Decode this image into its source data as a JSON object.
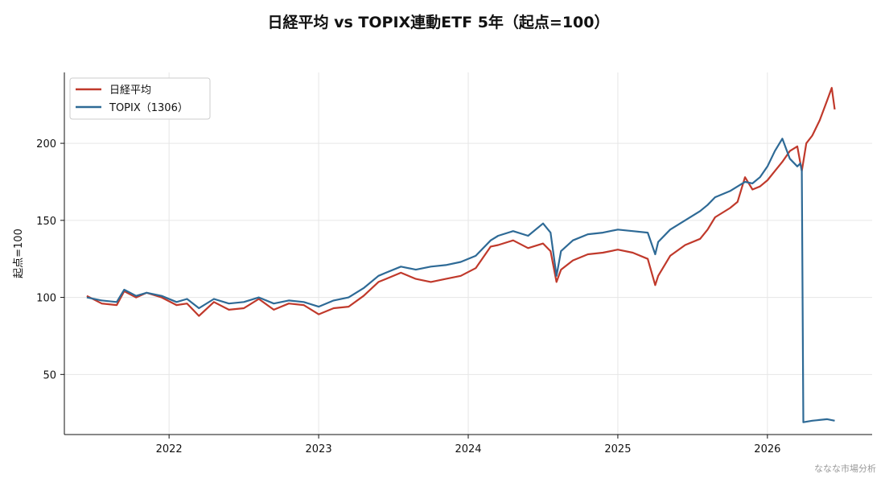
{
  "chart_data": {
    "type": "line",
    "title": "日経平均 vs TOPIX連動ETF 5年（起点=100）",
    "xlabel": "",
    "ylabel": "起点=100",
    "xlim": [
      2021.3,
      2026.7
    ],
    "ylim": [
      11,
      246
    ],
    "x_ticks": [
      2022,
      2023,
      2024,
      2025,
      2026
    ],
    "x_tick_labels": [
      "2022",
      "2023",
      "2024",
      "2025",
      "2026"
    ],
    "y_ticks": [
      50,
      100,
      150,
      200
    ],
    "y_tick_labels": [
      "50",
      "100",
      "150",
      "200"
    ],
    "grid": true,
    "legend_position": "top-left",
    "series": [
      {
        "name": "日経平均",
        "color": "#c0392b",
        "x": [
          2021.45,
          2021.55,
          2021.65,
          2021.7,
          2021.78,
          2021.85,
          2021.95,
          2022.05,
          2022.12,
          2022.2,
          2022.3,
          2022.4,
          2022.5,
          2022.6,
          2022.7,
          2022.8,
          2022.9,
          2023.0,
          2023.1,
          2023.2,
          2023.3,
          2023.4,
          2023.45,
          2023.55,
          2023.65,
          2023.75,
          2023.85,
          2023.95,
          2024.05,
          2024.15,
          2024.2,
          2024.3,
          2024.4,
          2024.5,
          2024.55,
          2024.59,
          2024.62,
          2024.7,
          2024.8,
          2024.9,
          2025.0,
          2025.1,
          2025.2,
          2025.25,
          2025.27,
          2025.35,
          2025.45,
          2025.55,
          2025.6,
          2025.65,
          2025.75,
          2025.8,
          2025.85,
          2025.9,
          2025.95,
          2026.0,
          2026.05,
          2026.1,
          2026.15,
          2026.2,
          2026.23,
          2026.26,
          2026.3,
          2026.35,
          2026.4,
          2026.43,
          2026.45
        ],
        "values": [
          101,
          96,
          95,
          104,
          100,
          103,
          100,
          95,
          96,
          88,
          97,
          92,
          93,
          99,
          92,
          96,
          95,
          89,
          93,
          94,
          101,
          110,
          112,
          116,
          112,
          110,
          112,
          114,
          119,
          133,
          134,
          137,
          132,
          135,
          130,
          110,
          118,
          124,
          128,
          129,
          131,
          129,
          125,
          108,
          114,
          127,
          134,
          138,
          144,
          152,
          158,
          162,
          178,
          170,
          172,
          176,
          182,
          188,
          195,
          198,
          182,
          200,
          205,
          215,
          228,
          236,
          222
        ]
      },
      {
        "name": "TOPIX（1306）",
        "color": "#2e6a96",
        "x": [
          2021.45,
          2021.55,
          2021.65,
          2021.7,
          2021.78,
          2021.85,
          2021.95,
          2022.05,
          2022.12,
          2022.2,
          2022.3,
          2022.4,
          2022.5,
          2022.6,
          2022.7,
          2022.8,
          2022.9,
          2023.0,
          2023.1,
          2023.2,
          2023.3,
          2023.4,
          2023.45,
          2023.55,
          2023.65,
          2023.75,
          2023.85,
          2023.95,
          2024.05,
          2024.15,
          2024.2,
          2024.3,
          2024.4,
          2024.5,
          2024.55,
          2024.59,
          2024.62,
          2024.7,
          2024.8,
          2024.9,
          2025.0,
          2025.1,
          2025.2,
          2025.25,
          2025.27,
          2025.35,
          2025.45,
          2025.55,
          2025.6,
          2025.65,
          2025.75,
          2025.8,
          2025.85,
          2025.9,
          2025.95,
          2026.0,
          2026.05,
          2026.1,
          2026.15,
          2026.2,
          2026.22,
          2026.23,
          2026.24,
          2026.3,
          2026.4,
          2026.45
        ],
        "values": [
          100,
          98,
          97,
          105,
          101,
          103,
          101,
          97,
          99,
          93,
          99,
          96,
          97,
          100,
          96,
          98,
          97,
          94,
          98,
          100,
          106,
          114,
          116,
          120,
          118,
          120,
          121,
          123,
          127,
          137,
          140,
          143,
          140,
          148,
          142,
          114,
          130,
          137,
          141,
          142,
          144,
          143,
          142,
          128,
          136,
          144,
          150,
          156,
          160,
          165,
          169,
          172,
          175,
          174,
          178,
          185,
          195,
          203,
          190,
          185,
          187,
          182,
          19,
          20,
          21,
          20
        ]
      }
    ],
    "credit": "ななな市場分析"
  }
}
